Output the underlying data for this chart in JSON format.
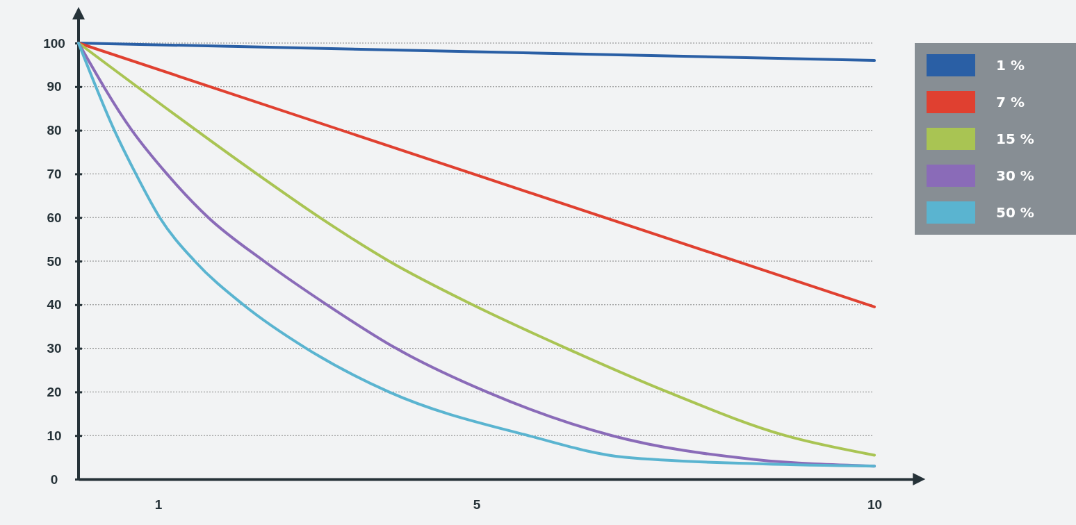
{
  "chart_data": {
    "type": "line",
    "xlim": [
      0,
      10.5
    ],
    "ylim": [
      0,
      100
    ],
    "xticks": [
      1,
      5,
      10
    ],
    "yticks": [
      0,
      10,
      20,
      30,
      40,
      50,
      60,
      70,
      80,
      90,
      100
    ],
    "grid": "y",
    "legend": "top right",
    "marker": "none",
    "line_style": "solid",
    "series": [
      {
        "name": "1 %",
        "color": "#2a5fa5",
        "x": [
          0,
          10
        ],
        "values": [
          100,
          96
        ]
      },
      {
        "name": "7 %",
        "color": "#e04030",
        "x": [
          0,
          10
        ],
        "values": [
          100,
          39.5
        ]
      },
      {
        "name": "15 %",
        "color": "#a9c453",
        "x": [
          0,
          2.24,
          3.03,
          3.9,
          4.95,
          6.13,
          7.4,
          8.88,
          10
        ],
        "values": [
          100,
          70,
          60,
          50,
          40,
          30,
          20,
          10,
          5.5
        ]
      },
      {
        "name": "30 %",
        "color": "#8a6bb8",
        "x": [
          0,
          0.67,
          1.11,
          1.63,
          2.33,
          3.12,
          3.99,
          5.13,
          6.7,
          8.5,
          10
        ],
        "values": [
          100,
          80,
          70,
          60,
          50,
          40,
          30,
          20,
          10,
          4.5,
          3
        ]
      },
      {
        "name": "50 %",
        "color": "#5ab4d0",
        "x": [
          0,
          0.45,
          0.72,
          1.02,
          1.46,
          2.07,
          2.86,
          3.9,
          5.65,
          6.87,
          8.6,
          10
        ],
        "values": [
          100,
          80,
          70,
          60,
          50,
          40,
          30,
          20,
          10,
          5,
          3.5,
          3
        ]
      }
    ]
  }
}
